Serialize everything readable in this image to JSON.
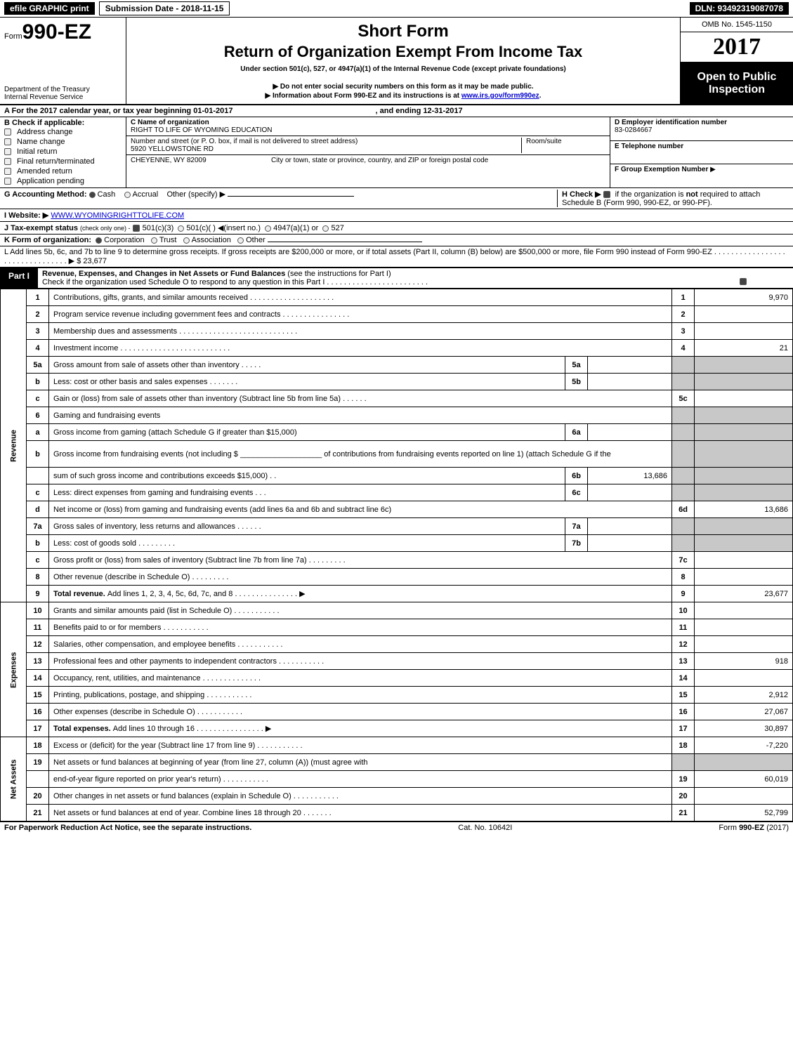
{
  "colors": {
    "black": "#000000",
    "white": "#ffffff",
    "shade": "#c8c8c8",
    "link": "#0000cc",
    "border": "#000000"
  },
  "top_strip": {
    "efile": "efile GRAPHIC print",
    "submission": "Submission Date - 2018-11-15",
    "dln": "DLN: 93492319087078"
  },
  "header": {
    "form_prefix": "Form",
    "form_number": "990-EZ",
    "dept1": "Department of the Treasury",
    "dept2": "Internal Revenue Service",
    "short_form": "Short Form",
    "return_line": "Return of Organization Exempt From Income Tax",
    "under_section": "Under section 501(c), 527, or 4947(a)(1) of the Internal Revenue Code (except private foundations)",
    "do_not": "▶ Do not enter social security numbers on this form as it may be made public.",
    "info_prefix": "▶ Information about Form 990-EZ and its instructions is at ",
    "info_link": "www.irs.gov/form990ez",
    "info_suffix": ".",
    "omb": "OMB No. 1545-1150",
    "year": "2017",
    "open_public": "Open to Public Inspection"
  },
  "section_a": {
    "text_prefix": "A   For the 2017 calendar year, or tax year beginning ",
    "begin": "01-01-2017",
    "mid": ", and ending ",
    "end": "12-31-2017"
  },
  "section_b": {
    "title": "B   Check if applicable:",
    "items": [
      "Address change",
      "Name change",
      "Initial return",
      "Final return/terminated",
      "Amended return",
      "Application pending"
    ]
  },
  "section_c": {
    "c_label": "C Name of organization",
    "org_name": "RIGHT TO LIFE OF WYOMING EDUCATION",
    "street_label": "Number and street (or P. O. box, if mail is not delivered to street address)",
    "street": "5920 YELLOWSTONE RD",
    "room_label": "Room/suite",
    "city_label": "City or town, state or province, country, and ZIP or foreign postal code",
    "city": "CHEYENNE, WY  82009"
  },
  "section_def": {
    "d_label": "D Employer identification number",
    "d_value": "83-0284667",
    "e_label": "E Telephone number",
    "e_value": "",
    "f_label": "F Group Exemption Number",
    "f_arrow": "▶"
  },
  "section_g": {
    "label": "G Accounting Method:",
    "cash": "Cash",
    "accrual": "Accrual",
    "other": "Other (specify) ▶"
  },
  "section_h": {
    "label": "H   Check ▶",
    "text1": "if the organization is ",
    "not": "not",
    "text2": " required to attach Schedule B (Form 990, 990-EZ, or 990-PF)."
  },
  "section_i": {
    "label": "I Website: ▶",
    "value": "WWW.WYOMINGRIGHTTOLIFE.COM"
  },
  "section_j": {
    "label": "J Tax-exempt status",
    "small": "(check only one) -",
    "o1": "501(c)(3)",
    "o2": "501(c)(  ) ◀(insert no.)",
    "o3": "4947(a)(1) or",
    "o4": "527"
  },
  "section_k": {
    "label": "K Form of organization:",
    "o1": "Corporation",
    "o2": "Trust",
    "o3": "Association",
    "o4": "Other"
  },
  "section_l": {
    "text": "L Add lines 5b, 6c, and 7b to line 9 to determine gross receipts. If gross receipts are $200,000 or more, or if total assets (Part II, column (B) below) are $500,000 or more, file Form 990 instead of Form 990-EZ  . . . . . . . . . . . . . . . . . . . . . . . . . . . . . . . .  ▶ ",
    "value": "$ 23,677"
  },
  "part1": {
    "label": "Part I",
    "title": "Revenue, Expenses, and Changes in Net Assets or Fund Balances ",
    "title_small": "(see the instructions for Part I)",
    "check_line": "Check if the organization used Schedule O to respond to any question in this Part I . . . . . . . . . . . . . . . . . . . . . . . .",
    "checked": true
  },
  "side_labels": {
    "revenue": "Revenue",
    "expenses": "Expenses",
    "net_assets": "Net Assets"
  },
  "lines": [
    {
      "num": "1",
      "desc": "Contributions, gifts, grants, and similar amounts received . . . . . . . . . . . . . . . . . . . .",
      "rnum": "1",
      "rval": "9,970"
    },
    {
      "num": "2",
      "desc": "Program service revenue including government fees and contracts . . . . . . . . . . . . . . . .",
      "rnum": "2",
      "rval": ""
    },
    {
      "num": "3",
      "desc": "Membership dues and assessments . . . . . . . . . . . . . . . . . . . . . . . . . . . .",
      "rnum": "3",
      "rval": ""
    },
    {
      "num": "4",
      "desc": "Investment income . . . . . . . . . . . . . . . . . . . . . . . . . .",
      "rnum": "4",
      "rval": "21"
    },
    {
      "num": "5a",
      "desc": "Gross amount from sale of assets other than inventory . . . . .",
      "sub": "5a",
      "subval": "",
      "rshade": true
    },
    {
      "num": "b",
      "desc": "Less: cost or other basis and sales expenses . . . . . . .",
      "sub": "5b",
      "subval": "",
      "rshade": true
    },
    {
      "num": "c",
      "desc": "Gain or (loss) from sale of assets other than inventory (Subtract line 5b from line 5a)         .   .   .   .   .   .",
      "rnum": "5c",
      "rval": ""
    },
    {
      "num": "6",
      "desc": "Gaming and fundraising events",
      "rshade": true,
      "nosub": true
    },
    {
      "num": "a",
      "desc": "Gross income from gaming (attach Schedule G if greater than $15,000)",
      "sub": "6a",
      "subval": "",
      "rshade": true
    },
    {
      "num": "b",
      "desc": "Gross income from fundraising events (not including $ ___________________ of contributions from fundraising events reported on line 1) (attach Schedule G if the",
      "rshade": true,
      "nosub": true,
      "tall": true
    },
    {
      "num": "",
      "desc": "sum of such gross income and contributions exceeds $15,000)       .   .",
      "sub": "6b",
      "subval": "13,686",
      "rshade": true
    },
    {
      "num": "c",
      "desc": "Less: direct expenses from gaming and fundraising events       .   .   .",
      "sub": "6c",
      "subval": "",
      "rshade": true
    },
    {
      "num": "d",
      "desc": "Net income or (loss) from gaming and fundraising events (add lines 6a and 6b and subtract line 6c)",
      "rnum": "6d",
      "rval": "13,686"
    },
    {
      "num": "7a",
      "desc": "Gross sales of inventory, less returns and allowances         .   .   .   .   .   .",
      "sub": "7a",
      "subval": "",
      "rshade": true
    },
    {
      "num": "b",
      "desc": "Less: cost of goods sold                       .   .   .   .   .   .   .   .   .",
      "sub": "7b",
      "subval": "",
      "rshade": true
    },
    {
      "num": "c",
      "desc": "Gross profit or (loss) from sales of inventory (Subtract line 7b from line 7a)         .   .   .   .   .   .   .   .   .",
      "rnum": "7c",
      "rval": ""
    },
    {
      "num": "8",
      "desc": "Other revenue (describe in Schedule O)             .   .   .   .   .   .   .   .   .",
      "rnum": "8",
      "rval": ""
    },
    {
      "num": "9",
      "desc_bold": "Total revenue. ",
      "desc": "Add lines 1, 2, 3, 4, 5c, 6d, 7c, and 8       .   .   .   .   .   .   .   .   .   .   .   .   .   .   . ▶",
      "rnum": "9",
      "rval": "23,677"
    }
  ],
  "expense_lines": [
    {
      "num": "10",
      "desc": "Grants and similar amounts paid (list in Schedule O)         .   .   .   .   .   .   .   .   .   .   .",
      "rnum": "10",
      "rval": ""
    },
    {
      "num": "11",
      "desc": "Benefits paid to or for members             .   .   .   .   .   .   .   .   .   .   .",
      "rnum": "11",
      "rval": ""
    },
    {
      "num": "12",
      "desc": "Salaries, other compensation, and employee benefits       .   .   .   .   .   .   .   .   .   .   .",
      "rnum": "12",
      "rval": ""
    },
    {
      "num": "13",
      "desc": "Professional fees and other payments to independent contractors       .   .   .   .   .   .   .   .   .   .   .",
      "rnum": "13",
      "rval": "918"
    },
    {
      "num": "14",
      "desc": "Occupancy, rent, utilities, and maintenance       .   .   .   .   .   .   .   .   .   .   .   .   .   .",
      "rnum": "14",
      "rval": ""
    },
    {
      "num": "15",
      "desc": "Printing, publications, postage, and shipping         .   .   .   .   .   .   .   .   .   .   .",
      "rnum": "15",
      "rval": "2,912"
    },
    {
      "num": "16",
      "desc": "Other expenses (describe in Schedule O)         .   .   .   .   .   .   .   .   .   .   .",
      "rnum": "16",
      "rval": "27,067"
    },
    {
      "num": "17",
      "desc_bold": "Total expenses. ",
      "desc": "Add lines 10 through 16         .   .   .   .   .   .   .   .   .   .   .   .   .   .   .   . ▶",
      "rnum": "17",
      "rval": "30,897"
    }
  ],
  "net_lines": [
    {
      "num": "18",
      "desc": "Excess or (deficit) for the year (Subtract line 17 from line 9)         .   .   .   .   .   .   .   .   .   .   .",
      "rnum": "18",
      "rval": "-7,220"
    },
    {
      "num": "19",
      "desc": "Net assets or fund balances at beginning of year (from line 27, column (A)) (must agree with",
      "rshade": true,
      "nosub": true
    },
    {
      "num": "",
      "desc": "end-of-year figure reported on prior year's return)         .   .   .   .   .   .   .   .   .   .   .",
      "rnum": "19",
      "rval": "60,019"
    },
    {
      "num": "20",
      "desc": "Other changes in net assets or fund balances (explain in Schedule O)       .   .   .   .   .   .   .   .   .   .   .",
      "rnum": "20",
      "rval": ""
    },
    {
      "num": "21",
      "desc": "Net assets or fund balances at end of year. Combine lines 18 through 20         .   .   .   .   .   .   .",
      "rnum": "21",
      "rval": "52,799"
    }
  ],
  "footer": {
    "left": "For Paperwork Reduction Act Notice, see the separate instructions.",
    "center": "Cat. No. 10642I",
    "right_prefix": "Form ",
    "right_form": "990-EZ",
    "right_suffix": " (2017)"
  }
}
